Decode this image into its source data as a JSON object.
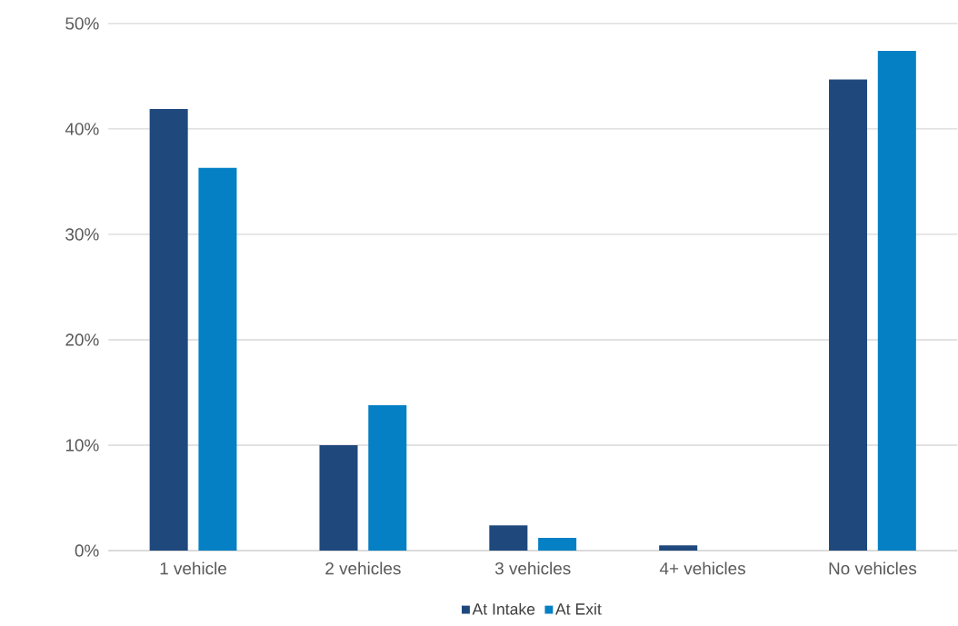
{
  "chart_data": {
    "type": "bar",
    "categories": [
      "1 vehicle",
      "2 vehicles",
      "3 vehicles",
      "4+ vehicles",
      "No vehicles"
    ],
    "series": [
      {
        "name": "At Intake",
        "color": "#1f497d",
        "values": [
          41.9,
          10.0,
          2.4,
          0.5,
          44.7
        ]
      },
      {
        "name": "At Exit",
        "color": "#0580c5",
        "values": [
          36.3,
          13.8,
          1.2,
          0,
          47.4
        ]
      }
    ],
    "ylim": [
      0,
      50
    ],
    "yticks": [
      {
        "value": 0,
        "label": "0%"
      },
      {
        "value": 10,
        "label": "10%"
      },
      {
        "value": 20,
        "label": "20%"
      },
      {
        "value": 30,
        "label": "30%"
      },
      {
        "value": 40,
        "label": "40%"
      },
      {
        "value": 50,
        "label": "50%"
      }
    ],
    "grid": "y",
    "legend": "bottom"
  }
}
